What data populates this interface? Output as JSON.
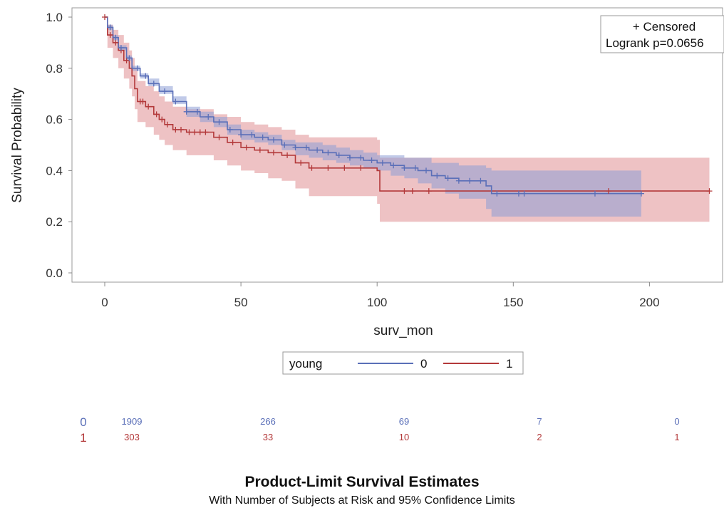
{
  "colors": {
    "group_0": "#5a6fb8",
    "group_1": "#b3393a",
    "band_0": "#8e9fd6",
    "band_1": "#e39a9d",
    "axis": "#888888"
  },
  "inset_legend": {
    "censored_label": "+ Censored",
    "logrank_label": "Logrank p=0.0656"
  },
  "group_legend": {
    "title": "young"
  },
  "risk_table": {
    "rows": [
      {
        "group": "0",
        "counts": [
          "1909",
          "266",
          "69",
          "7",
          "0"
        ]
      },
      {
        "group": "1",
        "counts": [
          "303",
          "33",
          "10",
          "2",
          "1"
        ]
      }
    ]
  },
  "footer": {
    "title": "Product-Limit Survival Estimates",
    "subtitle": "With Number of Subjects at Risk and 95% Confidence Limits"
  },
  "chart_data": {
    "type": "line",
    "chart_kind": "kaplan-meier step",
    "xlabel": "surv_mon",
    "ylabel": "Survival Probability",
    "xlim": [
      -12,
      225
    ],
    "ylim": [
      -0.04,
      1.02
    ],
    "xticks": [
      0,
      50,
      100,
      150,
      200
    ],
    "yticks": [
      0.0,
      0.2,
      0.4,
      0.6,
      0.8,
      1.0
    ],
    "grid": false,
    "legend_position": "bottom-center",
    "series": [
      {
        "name": "0",
        "color": "#5a6fb8",
        "points": [
          [
            0,
            1.0
          ],
          [
            1,
            0.96
          ],
          [
            3,
            0.92
          ],
          [
            5,
            0.88
          ],
          [
            8,
            0.84
          ],
          [
            10,
            0.8
          ],
          [
            13,
            0.77
          ],
          [
            16,
            0.74
          ],
          [
            20,
            0.71
          ],
          [
            25,
            0.67
          ],
          [
            30,
            0.63
          ],
          [
            35,
            0.61
          ],
          [
            40,
            0.59
          ],
          [
            45,
            0.56
          ],
          [
            50,
            0.54
          ],
          [
            55,
            0.53
          ],
          [
            60,
            0.52
          ],
          [
            65,
            0.5
          ],
          [
            70,
            0.49
          ],
          [
            75,
            0.48
          ],
          [
            80,
            0.47
          ],
          [
            85,
            0.46
          ],
          [
            90,
            0.45
          ],
          [
            95,
            0.44
          ],
          [
            100,
            0.43
          ],
          [
            105,
            0.42
          ],
          [
            110,
            0.41
          ],
          [
            115,
            0.4
          ],
          [
            120,
            0.38
          ],
          [
            125,
            0.37
          ],
          [
            130,
            0.36
          ],
          [
            140,
            0.34
          ],
          [
            142,
            0.31
          ],
          [
            197,
            0.31
          ]
        ],
        "ci_lower": [
          [
            0,
            1.0
          ],
          [
            1,
            0.95
          ],
          [
            3,
            0.91
          ],
          [
            5,
            0.87
          ],
          [
            8,
            0.83
          ],
          [
            10,
            0.79
          ],
          [
            13,
            0.76
          ],
          [
            16,
            0.73
          ],
          [
            20,
            0.7
          ],
          [
            25,
            0.66
          ],
          [
            30,
            0.61
          ],
          [
            35,
            0.59
          ],
          [
            40,
            0.57
          ],
          [
            45,
            0.54
          ],
          [
            50,
            0.52
          ],
          [
            55,
            0.51
          ],
          [
            60,
            0.5
          ],
          [
            65,
            0.48
          ],
          [
            70,
            0.46
          ],
          [
            75,
            0.45
          ],
          [
            80,
            0.44
          ],
          [
            85,
            0.43
          ],
          [
            90,
            0.42
          ],
          [
            95,
            0.41
          ],
          [
            100,
            0.4
          ],
          [
            105,
            0.38
          ],
          [
            110,
            0.37
          ],
          [
            115,
            0.35
          ],
          [
            120,
            0.33
          ],
          [
            125,
            0.31
          ],
          [
            130,
            0.29
          ],
          [
            140,
            0.25
          ],
          [
            142,
            0.22
          ],
          [
            197,
            0.22
          ]
        ],
        "ci_upper": [
          [
            0,
            1.0
          ],
          [
            1,
            0.97
          ],
          [
            3,
            0.93
          ],
          [
            5,
            0.89
          ],
          [
            8,
            0.85
          ],
          [
            10,
            0.81
          ],
          [
            13,
            0.78
          ],
          [
            16,
            0.76
          ],
          [
            20,
            0.73
          ],
          [
            25,
            0.69
          ],
          [
            30,
            0.65
          ],
          [
            35,
            0.63
          ],
          [
            40,
            0.61
          ],
          [
            45,
            0.58
          ],
          [
            50,
            0.56
          ],
          [
            55,
            0.55
          ],
          [
            60,
            0.54
          ],
          [
            65,
            0.52
          ],
          [
            70,
            0.51
          ],
          [
            75,
            0.51
          ],
          [
            80,
            0.5
          ],
          [
            85,
            0.49
          ],
          [
            90,
            0.48
          ],
          [
            95,
            0.47
          ],
          [
            100,
            0.46
          ],
          [
            105,
            0.46
          ],
          [
            110,
            0.45
          ],
          [
            115,
            0.45
          ],
          [
            120,
            0.43
          ],
          [
            125,
            0.43
          ],
          [
            130,
            0.42
          ],
          [
            140,
            0.41
          ],
          [
            142,
            0.4
          ],
          [
            197,
            0.4
          ]
        ],
        "censored_x": [
          2,
          4,
          6,
          9,
          12,
          15,
          18,
          22,
          26,
          30,
          34,
          38,
          42,
          46,
          50,
          54,
          58,
          62,
          66,
          70,
          74,
          78,
          82,
          86,
          90,
          94,
          98,
          102,
          106,
          110,
          114,
          118,
          122,
          126,
          130,
          134,
          138,
          144,
          152,
          154,
          180,
          197
        ]
      },
      {
        "name": "1",
        "color": "#b3393a",
        "points": [
          [
            0,
            1.0
          ],
          [
            1,
            0.93
          ],
          [
            3,
            0.9
          ],
          [
            5,
            0.87
          ],
          [
            7,
            0.83
          ],
          [
            9,
            0.8
          ],
          [
            10,
            0.77
          ],
          [
            11,
            0.72
          ],
          [
            12,
            0.67
          ],
          [
            15,
            0.65
          ],
          [
            18,
            0.62
          ],
          [
            20,
            0.6
          ],
          [
            22,
            0.58
          ],
          [
            25,
            0.56
          ],
          [
            30,
            0.55
          ],
          [
            40,
            0.53
          ],
          [
            45,
            0.51
          ],
          [
            50,
            0.49
          ],
          [
            55,
            0.48
          ],
          [
            60,
            0.47
          ],
          [
            65,
            0.46
          ],
          [
            70,
            0.43
          ],
          [
            75,
            0.41
          ],
          [
            100,
            0.4
          ],
          [
            101,
            0.32
          ],
          [
            222,
            0.32
          ]
        ],
        "ci_lower": [
          [
            0,
            1.0
          ],
          [
            1,
            0.88
          ],
          [
            3,
            0.84
          ],
          [
            5,
            0.8
          ],
          [
            7,
            0.76
          ],
          [
            9,
            0.72
          ],
          [
            10,
            0.69
          ],
          [
            11,
            0.64
          ],
          [
            12,
            0.59
          ],
          [
            15,
            0.57
          ],
          [
            18,
            0.54
          ],
          [
            20,
            0.52
          ],
          [
            22,
            0.5
          ],
          [
            25,
            0.48
          ],
          [
            30,
            0.46
          ],
          [
            40,
            0.44
          ],
          [
            45,
            0.42
          ],
          [
            50,
            0.4
          ],
          [
            55,
            0.39
          ],
          [
            60,
            0.37
          ],
          [
            65,
            0.36
          ],
          [
            70,
            0.33
          ],
          [
            75,
            0.3
          ],
          [
            100,
            0.27
          ],
          [
            101,
            0.2
          ],
          [
            222,
            0.2
          ]
        ],
        "ci_upper": [
          [
            0,
            1.0
          ],
          [
            1,
            0.97
          ],
          [
            3,
            0.95
          ],
          [
            5,
            0.93
          ],
          [
            7,
            0.9
          ],
          [
            9,
            0.87
          ],
          [
            10,
            0.84
          ],
          [
            11,
            0.8
          ],
          [
            12,
            0.75
          ],
          [
            15,
            0.73
          ],
          [
            18,
            0.71
          ],
          [
            20,
            0.69
          ],
          [
            22,
            0.67
          ],
          [
            25,
            0.65
          ],
          [
            30,
            0.64
          ],
          [
            40,
            0.62
          ],
          [
            45,
            0.61
          ],
          [
            50,
            0.59
          ],
          [
            55,
            0.58
          ],
          [
            60,
            0.57
          ],
          [
            65,
            0.56
          ],
          [
            70,
            0.54
          ],
          [
            75,
            0.53
          ],
          [
            100,
            0.52
          ],
          [
            101,
            0.45
          ],
          [
            222,
            0.45
          ]
        ],
        "censored_x": [
          0,
          2,
          4,
          6,
          8,
          13,
          14,
          16,
          19,
          21,
          23,
          26,
          28,
          31,
          33,
          35,
          37,
          42,
          47,
          52,
          57,
          62,
          67,
          72,
          76,
          82,
          88,
          94,
          110,
          113,
          119,
          185,
          222
        ]
      }
    ],
    "risk_x": [
      0,
      50,
      100,
      150,
      200
    ]
  }
}
